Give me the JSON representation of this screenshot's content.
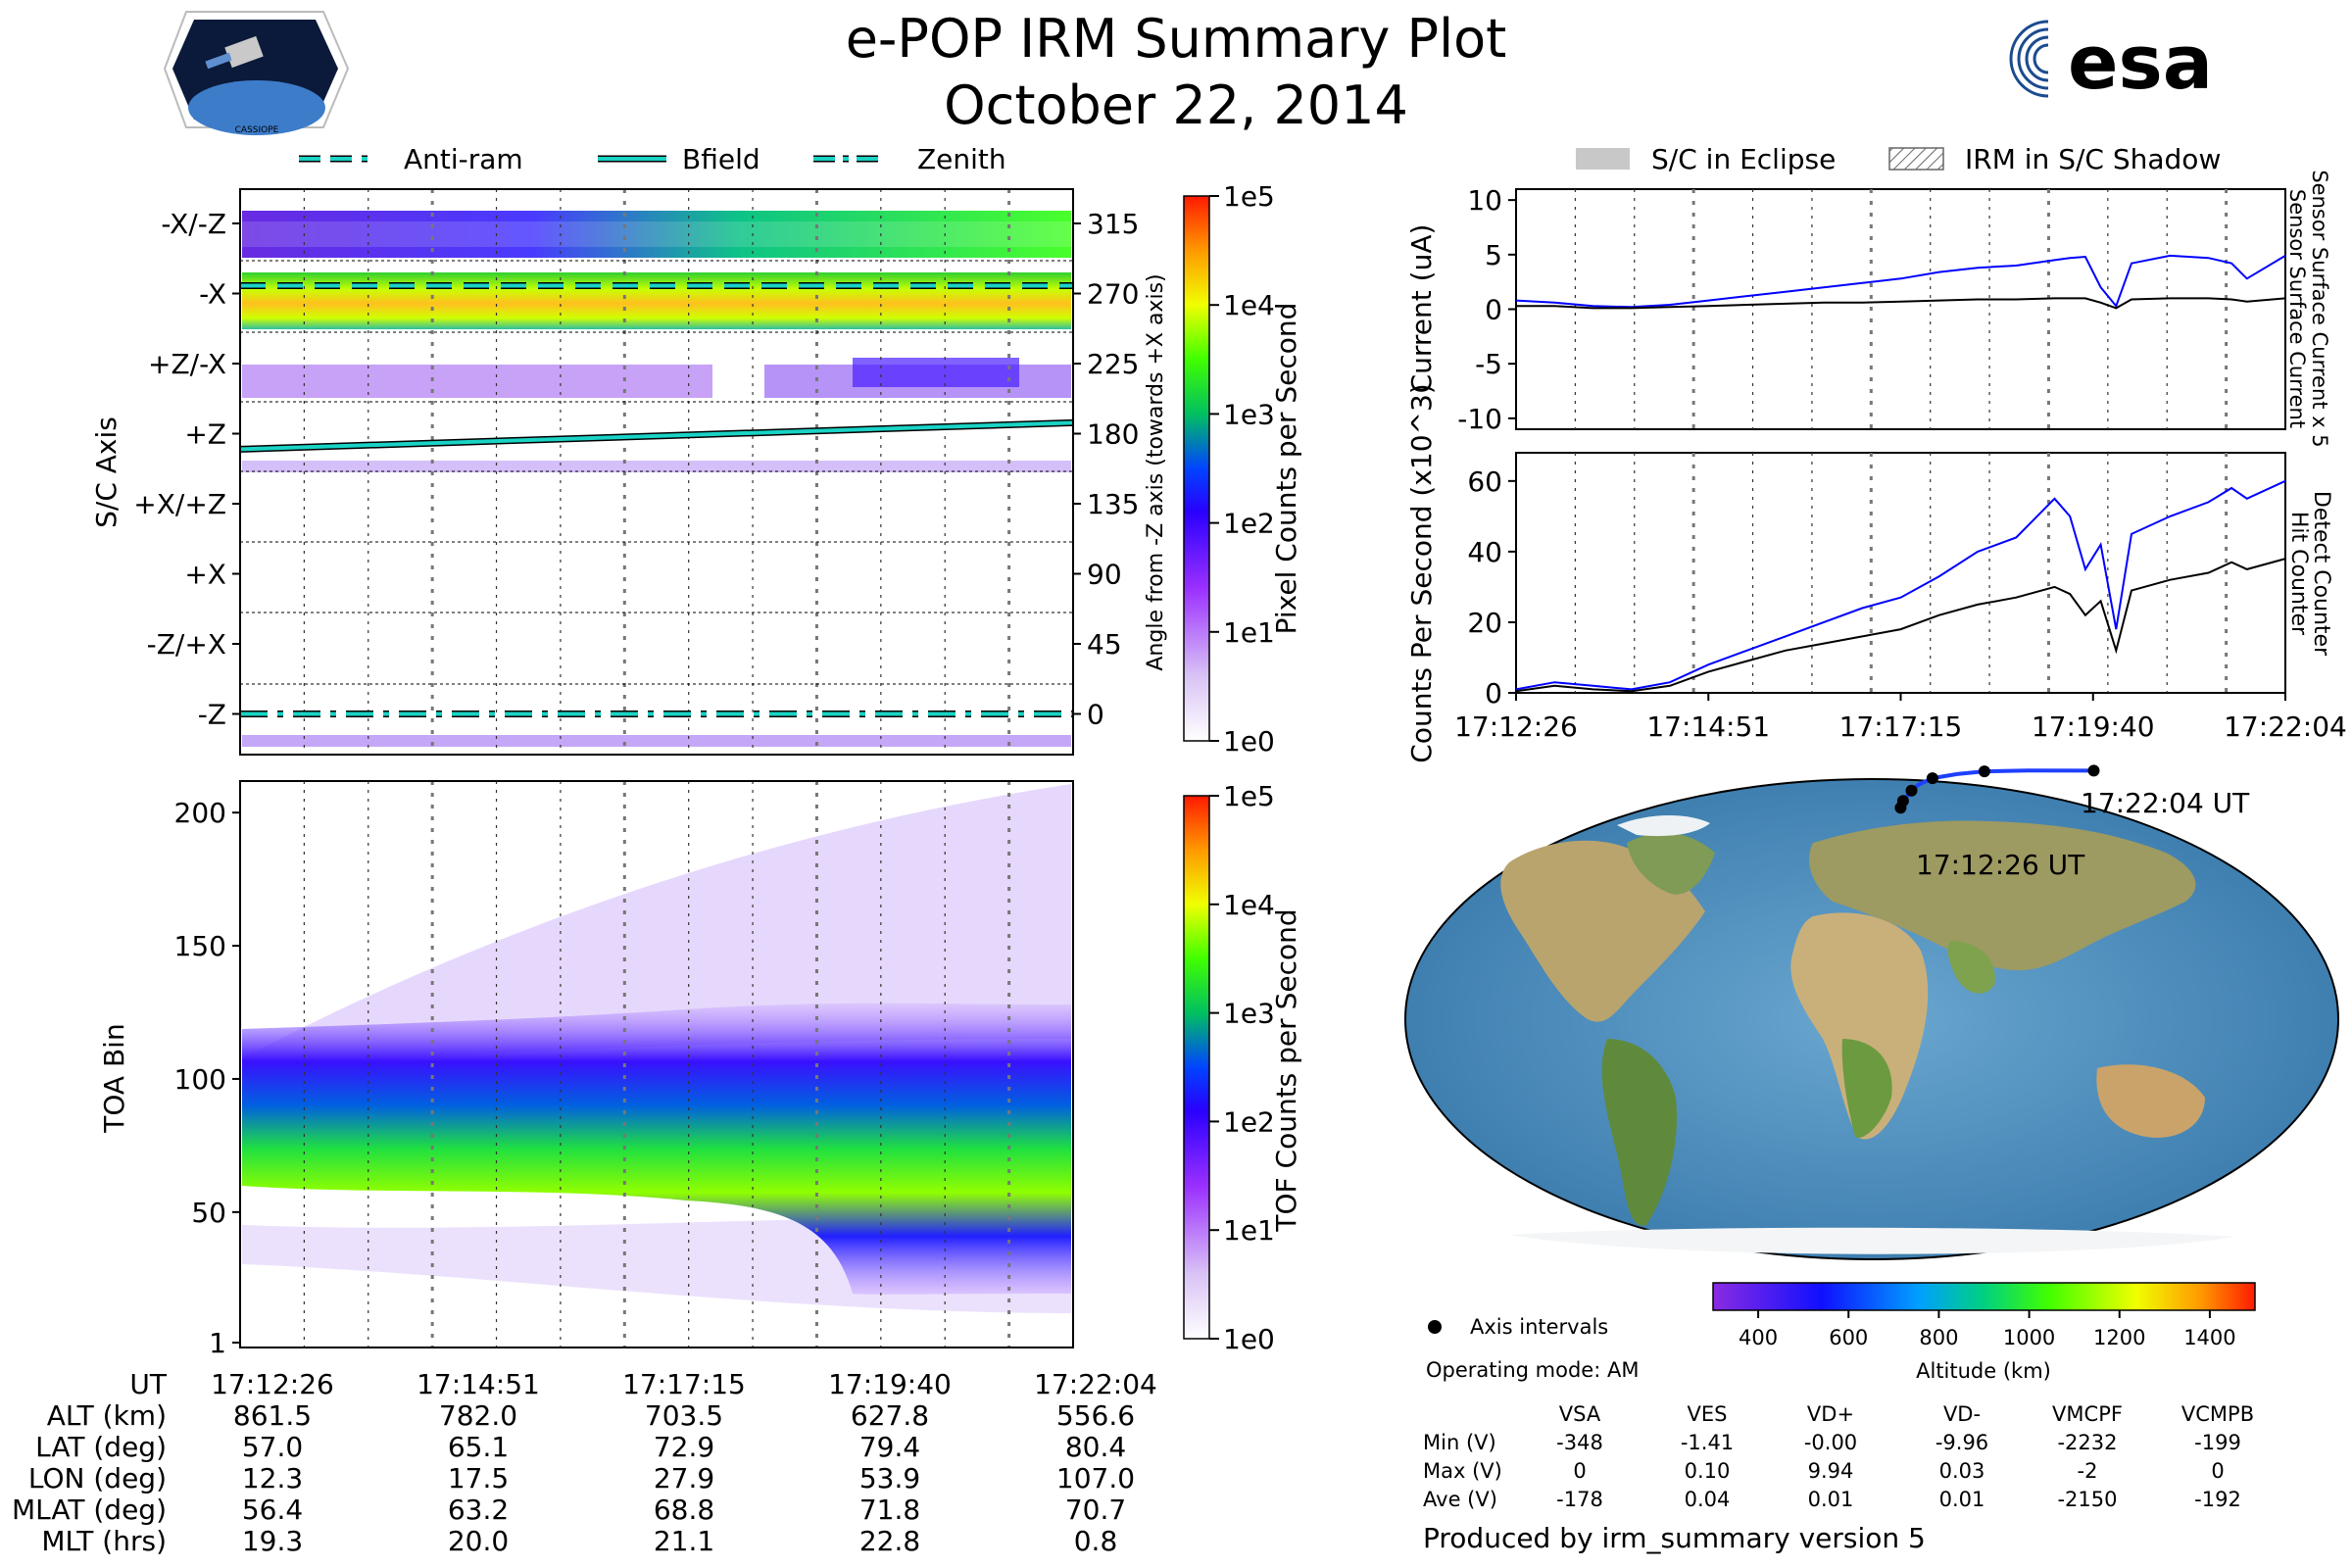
{
  "header": {
    "title": "e-POP IRM Summary Plot",
    "date": "October 22, 2014",
    "left_logo": "CASSIOPE",
    "right_logo": "esa"
  },
  "legend_top_left": [
    {
      "label": "Anti-ram",
      "style": "dashed",
      "color": "#19d3c5"
    },
    {
      "label": "Bfield",
      "style": "solid",
      "color": "#19d3c5"
    },
    {
      "label": "Zenith",
      "style": "dashdot",
      "color": "#19d3c5"
    }
  ],
  "legend_top_right": [
    {
      "label": "S/C in Eclipse",
      "style": "filled",
      "color": "#c8c8c8"
    },
    {
      "label": "IRM in S/C Shadow",
      "style": "hatched",
      "color": "#888888"
    }
  ],
  "colors": {
    "sensor_surface_current_x5": "#0000ff",
    "sensor_surface_current": "#000000",
    "detect_counter": "#0000ff",
    "hit_counter": "#000000",
    "orbit_track": "#1e40ff",
    "ocean": "#4f8fbf"
  },
  "chart_data": [
    {
      "type": "heatmap",
      "id": "pixel_panel",
      "ylabel": "S/C Axis",
      "y_categories": [
        "-X/-Z",
        "-X",
        "+Z/-X",
        "+Z",
        "+X/+Z",
        "+X",
        "-Z/+X",
        "-Z"
      ],
      "right_ylabel": "Angle from -Z axis (towards +X axis)",
      "right_ticks": [
        315,
        270,
        225,
        180,
        135,
        90,
        45,
        0
      ],
      "colorbar_label": "Pixel Counts per Second",
      "colorbar_ticks": [
        "1e5",
        "1e4",
        "1e3",
        "1e2",
        "1e1",
        "1e0"
      ],
      "lines": [
        {
          "name": "Anti-ram",
          "angle_start": 275,
          "angle_end": 275
        },
        {
          "name": "Bfield",
          "angle_start": 170,
          "angle_end": 187
        },
        {
          "name": "Zenith",
          "angle_start": 0,
          "angle_end": 0
        }
      ]
    },
    {
      "type": "heatmap",
      "id": "tof_panel",
      "ylabel": "TOA Bin",
      "y_ticks": [
        1,
        50,
        100,
        150,
        200
      ],
      "ylim": [
        1,
        210
      ],
      "colorbar_label": "TOF Counts per Second",
      "colorbar_ticks": [
        "1e5",
        "1e4",
        "1e3",
        "1e2",
        "1e1",
        "1e0"
      ]
    },
    {
      "type": "line",
      "id": "current_panel",
      "ylabel": "Current (uA)",
      "ylim": [
        -11,
        11
      ],
      "y_ticks": [
        10,
        5,
        0,
        -5,
        -10
      ],
      "right_labels": [
        "Sensor Surface Current x 5",
        "Sensor Surface Current"
      ],
      "x": [
        0,
        0.05,
        0.1,
        0.15,
        0.2,
        0.25,
        0.3,
        0.35,
        0.4,
        0.45,
        0.5,
        0.55,
        0.6,
        0.65,
        0.7,
        0.72,
        0.74,
        0.76,
        0.78,
        0.8,
        0.85,
        0.9,
        0.93,
        0.95,
        1.0
      ],
      "series": [
        {
          "name": "Sensor Surface Current x 5",
          "values": [
            0.8,
            0.6,
            0.3,
            0.2,
            0.4,
            0.8,
            1.2,
            1.6,
            2.0,
            2.4,
            2.8,
            3.4,
            3.8,
            4.0,
            4.5,
            4.7,
            4.8,
            2.0,
            0.3,
            4.2,
            4.9,
            4.7,
            4.2,
            2.8,
            4.9
          ]
        },
        {
          "name": "Sensor Surface Current",
          "values": [
            0.3,
            0.3,
            0.1,
            0.1,
            0.2,
            0.3,
            0.4,
            0.5,
            0.6,
            0.6,
            0.7,
            0.8,
            0.9,
            0.9,
            1.0,
            1.0,
            1.0,
            0.6,
            0.1,
            0.9,
            1.0,
            1.0,
            0.9,
            0.7,
            1.0
          ]
        }
      ]
    },
    {
      "type": "line",
      "id": "counts_panel",
      "ylabel": "Counts Per Second (x10^3)",
      "ylim": [
        0,
        68
      ],
      "y_ticks": [
        0,
        20,
        40,
        60
      ],
      "right_labels": [
        "Detect Counter",
        "Hit Counter"
      ],
      "x_ticks": [
        "17:12:26",
        "17:14:51",
        "17:17:15",
        "17:19:40",
        "17:22:04"
      ],
      "x": [
        0,
        0.05,
        0.1,
        0.15,
        0.2,
        0.25,
        0.3,
        0.35,
        0.4,
        0.45,
        0.5,
        0.55,
        0.6,
        0.65,
        0.7,
        0.72,
        0.74,
        0.76,
        0.78,
        0.8,
        0.85,
        0.9,
        0.93,
        0.95,
        1.0
      ],
      "series": [
        {
          "name": "Detect Counter",
          "values": [
            1,
            3,
            2,
            1,
            3,
            8,
            12,
            16,
            20,
            24,
            27,
            33,
            40,
            44,
            55,
            50,
            35,
            42,
            18,
            45,
            50,
            54,
            58,
            55,
            60
          ]
        },
        {
          "name": "Hit Counter",
          "values": [
            0.5,
            2,
            1,
            0.5,
            2,
            6,
            9,
            12,
            14,
            16,
            18,
            22,
            25,
            27,
            30,
            28,
            22,
            26,
            12,
            29,
            32,
            34,
            37,
            35,
            38
          ]
        }
      ]
    },
    {
      "type": "scatter",
      "id": "map_panel",
      "label_start": "17:12:26 UT",
      "label_end": "17:22:04 UT",
      "track_lon": [
        12.3,
        13.5,
        15.5,
        17.5,
        21,
        27.9,
        40,
        53.9,
        75,
        107.0
      ],
      "track_lat": [
        57.0,
        60.0,
        62.5,
        65.1,
        68.5,
        72.9,
        76.5,
        79.4,
        80.5,
        80.4
      ],
      "altitude_colorbar": {
        "label": "Altitude (km)",
        "ticks": [
          400,
          600,
          800,
          1000,
          1200,
          1400
        ],
        "range": [
          300,
          1500
        ]
      },
      "legend_label": "Axis intervals"
    }
  ],
  "ephemeris": {
    "row_labels": [
      "UT",
      "ALT (km)",
      "LAT (deg)",
      "LON (deg)",
      "MLAT (deg)",
      "MLT (hrs)"
    ],
    "columns": [
      [
        "17:12:26",
        "861.5",
        "57.0",
        "12.3",
        "56.4",
        "19.3"
      ],
      [
        "17:14:51",
        "782.0",
        "65.1",
        "17.5",
        "63.2",
        "20.0"
      ],
      [
        "17:17:15",
        "703.5",
        "72.9",
        "27.9",
        "68.8",
        "21.1"
      ],
      [
        "17:19:40",
        "627.8",
        "79.4",
        "53.9",
        "71.8",
        "22.8"
      ],
      [
        "17:22:04",
        "556.6",
        "80.4",
        "107.0",
        "70.7",
        "0.8"
      ]
    ]
  },
  "voltages": {
    "operating_mode": "Operating mode: AM",
    "headers": [
      "VSA",
      "VES",
      "VD+",
      "VD-",
      "VMCPF",
      "VCMPB"
    ],
    "rows": [
      {
        "label": "Min (V)",
        "values": [
          "-348",
          "-1.41",
          "-0.00",
          "-9.96",
          "-2232",
          "-199"
        ]
      },
      {
        "label": "Max (V)",
        "values": [
          "0",
          "0.10",
          "9.94",
          "0.03",
          "-2",
          "0"
        ]
      },
      {
        "label": "Ave (V)",
        "values": [
          "-178",
          "0.04",
          "0.01",
          "0.01",
          "-2150",
          "-192"
        ]
      }
    ]
  },
  "footer": "Produced by irm_summary version 5"
}
